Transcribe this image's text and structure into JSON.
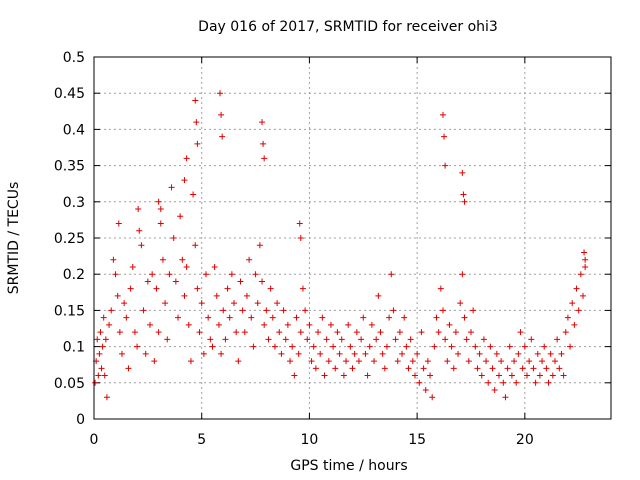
{
  "chart_data": {
    "type": "scatter",
    "title": "Day 016 of 2017, SRMTID for receiver ohi3",
    "xlabel": "GPS time / hours",
    "ylabel": "SRMTID / TECUs",
    "xlim": [
      0,
      24
    ],
    "ylim": [
      0,
      0.5
    ],
    "xticks": [
      0,
      5,
      10,
      15,
      20
    ],
    "xtick_labels": [
      "0",
      "5",
      "10",
      "15",
      "20"
    ],
    "yticks": [
      0,
      0.05,
      0.1,
      0.15,
      0.2,
      0.25,
      0.3,
      0.35,
      0.4,
      0.45,
      0.5
    ],
    "ytick_labels": [
      "0",
      "0.05",
      "0.1",
      "0.15",
      "0.2",
      "0.25",
      "0.3",
      "0.35",
      "0.4",
      "0.45",
      "0.5"
    ],
    "grid": true,
    "marker": "+",
    "color": "#e00000",
    "series": [
      {
        "name": "SRMTID",
        "x": [
          0.05,
          0.1,
          0.15,
          0.2,
          0.25,
          0.3,
          0.35,
          0.4,
          0.45,
          0.5,
          0.55,
          0.6,
          0.7,
          0.8,
          0.9,
          1.0,
          1.1,
          1.2,
          1.3,
          1.4,
          1.5,
          1.6,
          1.7,
          1.8,
          1.9,
          2.0,
          2.1,
          2.2,
          2.3,
          2.4,
          2.5,
          2.6,
          2.7,
          2.8,
          2.9,
          3.0,
          3.1,
          3.2,
          3.3,
          3.4,
          3.5,
          3.6,
          3.7,
          3.8,
          3.9,
          4.0,
          4.1,
          4.2,
          4.3,
          4.4,
          4.5,
          4.6,
          4.7,
          4.8,
          4.9,
          5.0,
          5.1,
          5.2,
          5.3,
          5.4,
          5.5,
          5.6,
          5.7,
          5.8,
          5.9,
          6.0,
          6.1,
          6.2,
          6.3,
          6.4,
          6.5,
          6.6,
          6.7,
          6.8,
          6.9,
          7.0,
          7.1,
          7.2,
          7.3,
          7.4,
          7.5,
          7.6,
          7.7,
          7.8,
          7.9,
          8.0,
          8.1,
          8.2,
          8.3,
          8.4,
          8.5,
          8.6,
          8.7,
          8.8,
          8.9,
          9.0,
          9.1,
          9.2,
          9.3,
          9.4,
          9.5,
          9.6,
          9.7,
          9.8,
          9.9,
          10.0,
          10.1,
          10.2,
          10.3,
          10.4,
          10.5,
          10.6,
          10.7,
          10.8,
          10.9,
          11.0,
          11.1,
          11.2,
          11.3,
          11.4,
          11.5,
          11.6,
          11.7,
          11.8,
          11.9,
          12.0,
          12.1,
          12.2,
          12.3,
          12.4,
          12.5,
          12.6,
          12.7,
          12.8,
          12.9,
          13.0,
          13.1,
          13.2,
          13.3,
          13.4,
          13.5,
          13.6,
          13.7,
          13.8,
          13.9,
          14.0,
          14.1,
          14.2,
          14.3,
          14.4,
          14.5,
          14.6,
          14.7,
          14.8,
          14.9,
          15.0,
          15.1,
          15.2,
          15.3,
          15.4,
          15.5,
          15.6,
          15.7,
          15.8,
          15.9,
          16.0,
          16.1,
          16.2,
          16.3,
          16.4,
          16.5,
          16.6,
          16.7,
          16.8,
          16.9,
          17.0,
          17.1,
          17.2,
          17.3,
          17.4,
          17.5,
          17.6,
          17.7,
          17.8,
          17.9,
          18.0,
          18.1,
          18.2,
          18.3,
          18.4,
          18.5,
          18.6,
          18.7,
          18.8,
          18.9,
          19.0,
          19.1,
          19.2,
          19.3,
          19.4,
          19.5,
          19.6,
          19.7,
          19.8,
          19.9,
          20.0,
          20.1,
          20.2,
          20.3,
          20.4,
          20.5,
          20.6,
          20.7,
          20.8,
          20.9,
          21.0,
          21.1,
          21.2,
          21.3,
          21.4,
          21.5,
          21.6,
          21.7,
          21.8,
          21.9,
          22.0,
          22.1,
          22.2,
          22.3,
          22.4,
          22.5,
          22.6,
          22.7,
          22.8,
          4.7,
          4.75,
          4.8,
          5.85,
          5.9,
          5.95,
          7.8,
          7.85,
          7.9,
          16.2,
          16.25,
          16.3,
          17.1,
          17.15,
          17.2,
          3.0,
          3.1,
          4.2,
          4.3,
          9.55,
          9.6,
          22.75,
          22.8,
          1.15,
          2.05
        ],
        "y": [
          0.05,
          0.08,
          0.11,
          0.06,
          0.09,
          0.12,
          0.07,
          0.1,
          0.14,
          0.06,
          0.11,
          0.03,
          0.13,
          0.15,
          0.22,
          0.2,
          0.17,
          0.12,
          0.09,
          0.16,
          0.14,
          0.07,
          0.18,
          0.21,
          0.12,
          0.1,
          0.26,
          0.24,
          0.15,
          0.09,
          0.19,
          0.13,
          0.2,
          0.08,
          0.18,
          0.12,
          0.27,
          0.22,
          0.16,
          0.11,
          0.2,
          0.32,
          0.25,
          0.19,
          0.14,
          0.28,
          0.22,
          0.17,
          0.21,
          0.13,
          0.08,
          0.31,
          0.24,
          0.18,
          0.12,
          0.16,
          0.09,
          0.2,
          0.14,
          0.11,
          0.1,
          0.21,
          0.17,
          0.13,
          0.09,
          0.15,
          0.11,
          0.18,
          0.14,
          0.2,
          0.16,
          0.12,
          0.08,
          0.19,
          0.15,
          0.12,
          0.17,
          0.22,
          0.14,
          0.1,
          0.2,
          0.16,
          0.24,
          0.19,
          0.13,
          0.15,
          0.11,
          0.18,
          0.14,
          0.1,
          0.16,
          0.12,
          0.09,
          0.15,
          0.11,
          0.13,
          0.08,
          0.1,
          0.06,
          0.14,
          0.09,
          0.12,
          0.18,
          0.15,
          0.11,
          0.13,
          0.08,
          0.1,
          0.07,
          0.12,
          0.09,
          0.14,
          0.06,
          0.11,
          0.08,
          0.13,
          0.1,
          0.07,
          0.12,
          0.09,
          0.11,
          0.06,
          0.08,
          0.13,
          0.1,
          0.07,
          0.09,
          0.12,
          0.08,
          0.11,
          0.14,
          0.09,
          0.06,
          0.1,
          0.13,
          0.08,
          0.11,
          0.17,
          0.12,
          0.09,
          0.07,
          0.1,
          0.14,
          0.2,
          0.15,
          0.11,
          0.08,
          0.12,
          0.09,
          0.14,
          0.1,
          0.07,
          0.11,
          0.08,
          0.06,
          0.09,
          0.05,
          0.12,
          0.07,
          0.04,
          0.08,
          0.06,
          0.03,
          0.1,
          0.14,
          0.12,
          0.18,
          0.15,
          0.11,
          0.08,
          0.13,
          0.1,
          0.07,
          0.12,
          0.09,
          0.16,
          0.2,
          0.14,
          0.11,
          0.08,
          0.12,
          0.15,
          0.1,
          0.07,
          0.09,
          0.06,
          0.11,
          0.08,
          0.05,
          0.1,
          0.07,
          0.04,
          0.09,
          0.06,
          0.08,
          0.05,
          0.03,
          0.07,
          0.1,
          0.06,
          0.08,
          0.05,
          0.09,
          0.12,
          0.07,
          0.1,
          0.06,
          0.08,
          0.11,
          0.07,
          0.05,
          0.09,
          0.06,
          0.08,
          0.1,
          0.07,
          0.05,
          0.09,
          0.06,
          0.08,
          0.11,
          0.07,
          0.09,
          0.06,
          0.12,
          0.14,
          0.1,
          0.16,
          0.13,
          0.18,
          0.15,
          0.2,
          0.17,
          0.22,
          0.44,
          0.41,
          0.38,
          0.45,
          0.42,
          0.39,
          0.41,
          0.38,
          0.36,
          0.42,
          0.39,
          0.35,
          0.34,
          0.31,
          0.3,
          0.3,
          0.29,
          0.33,
          0.36,
          0.27,
          0.25,
          0.23,
          0.21,
          0.27,
          0.29
        ]
      }
    ]
  }
}
